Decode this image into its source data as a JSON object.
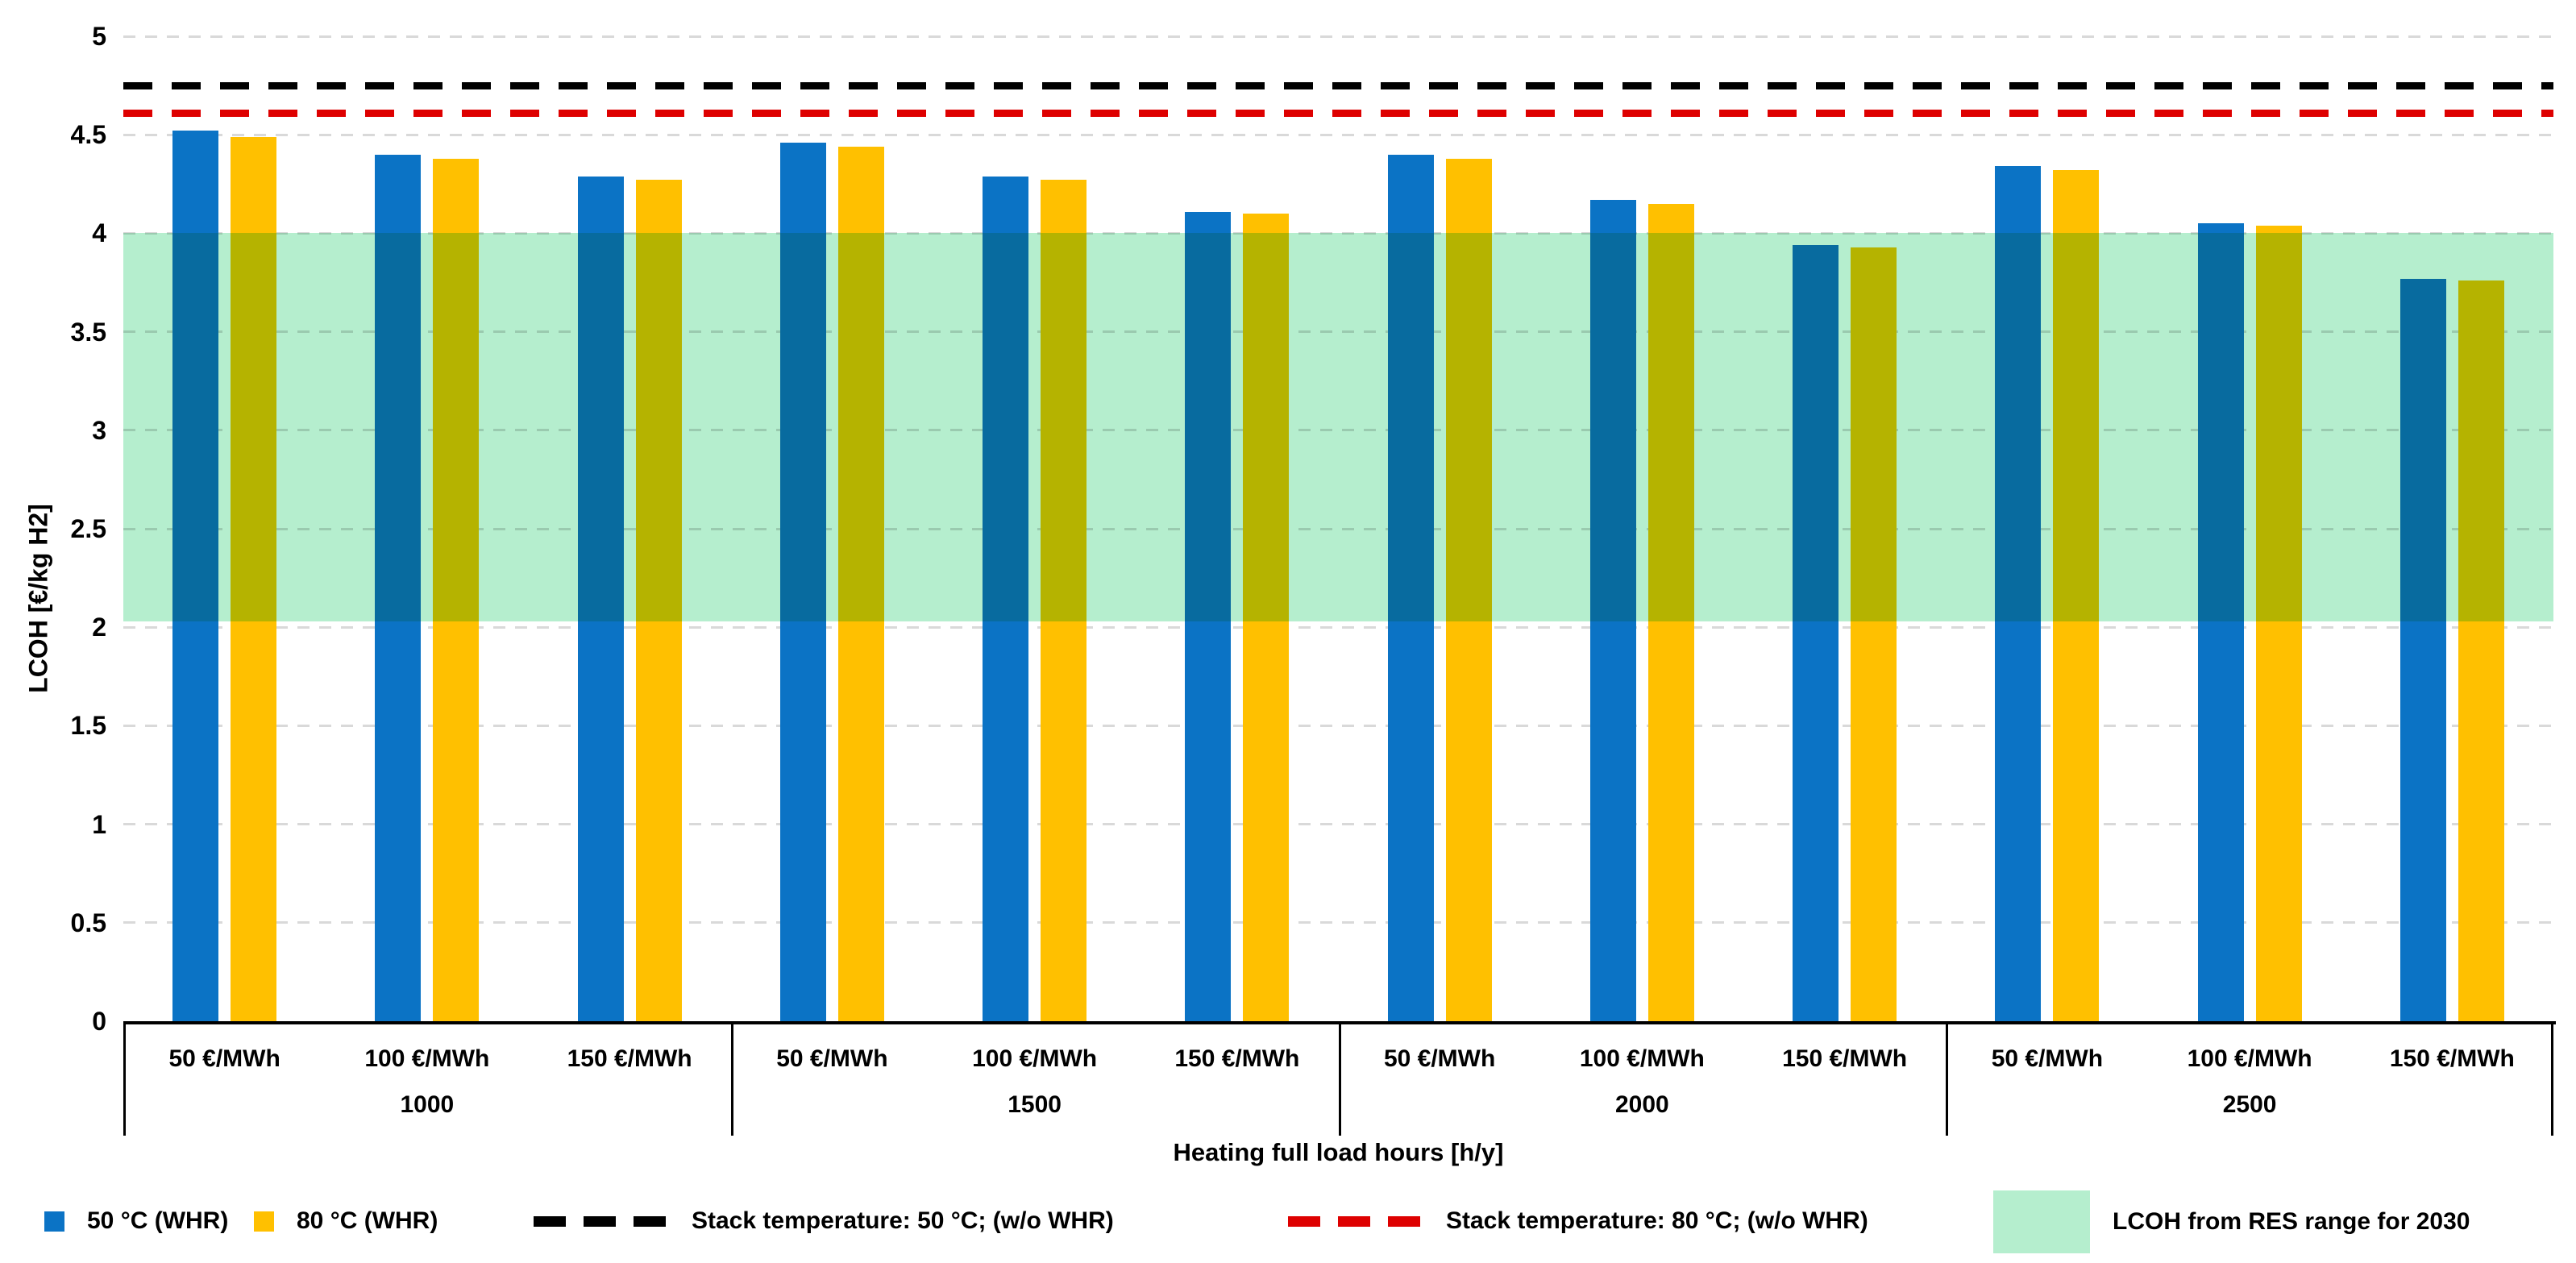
{
  "chart_data": {
    "type": "bar",
    "title": "",
    "xlabel": "Heating full load hours [h/y]",
    "ylabel": "LCOH [€/kg H2]",
    "ylim": [
      0,
      5
    ],
    "ytick_step": 0.5,
    "yticks": [
      "0",
      "0.5",
      "1",
      "1.5",
      "2",
      "2.5",
      "3",
      "3.5",
      "4",
      "4.5",
      "5"
    ],
    "grid": "horizontal dashed gray",
    "legend_position": "bottom",
    "groups": [
      "1000",
      "1500",
      "2000",
      "2500"
    ],
    "subcategories": [
      "50 €/MWh",
      "100 €/MWh",
      "150 €/MWh"
    ],
    "series": [
      {
        "name": "50 °C (WHR)",
        "color": "#0B73C5",
        "values": [
          [
            4.52,
            4.4,
            4.29
          ],
          [
            4.46,
            4.29,
            4.11
          ],
          [
            4.4,
            4.17,
            3.94
          ],
          [
            4.34,
            4.05,
            3.77
          ]
        ]
      },
      {
        "name": "80 °C (WHR)",
        "color": "#FFC000",
        "values": [
          [
            4.49,
            4.38,
            4.27
          ],
          [
            4.44,
            4.27,
            4.1
          ],
          [
            4.38,
            4.15,
            3.93
          ],
          [
            4.32,
            4.04,
            3.76
          ]
        ]
      }
    ],
    "hlines": [
      {
        "label": "Stack temperature: 50 °C; (w/o WHR)",
        "value": 4.75,
        "color": "#000000",
        "style": "dashed"
      },
      {
        "label": "Stack temperature: 80 °C; (w/o WHR)",
        "value": 4.61,
        "color": "#DE0000",
        "style": "dashed"
      }
    ],
    "band": {
      "label": "LCOH from RES range for 2030",
      "from": 2.03,
      "to": 4.0,
      "color": "#B5EECE"
    }
  },
  "colors": {
    "gridline": "#D9D9D9",
    "axis": "#000000",
    "text": "#000000",
    "background": "#FFFFFF"
  }
}
